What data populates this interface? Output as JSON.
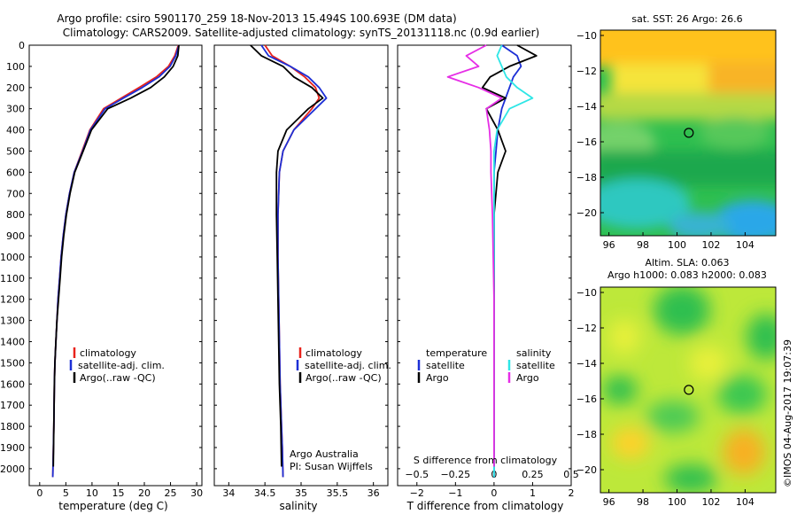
{
  "header": {
    "line1": "Argo profile: csiro 5901170_259 18-Nov-2013 15.494S 100.693E (DM data)",
    "line2": "Climatology: CARS2009. Satellite-adjusted climatology: synTS_20131118.nc (0.9d earlier)"
  },
  "footer": {
    "credit": "©IMOS 04-Aug-2017 19:07:39"
  },
  "colors": {
    "climatology": "#e8231c",
    "satellite": "#1c2fd6",
    "argo": "#000000",
    "s_satellite": "#2ee6e6",
    "s_argo": "#e62ee6",
    "map_marker": "#000000"
  },
  "chart_data": [
    {
      "type": "line",
      "panel": "temperature",
      "xlabel": "temperature (deg C)",
      "ylabel": "",
      "xlim": [
        -2,
        31
      ],
      "ylim": [
        2080,
        0
      ],
      "xticks": [
        0,
        5,
        10,
        15,
        20,
        25,
        30
      ],
      "yticks": [
        0,
        100,
        200,
        300,
        400,
        500,
        600,
        700,
        800,
        900,
        1000,
        1100,
        1200,
        1300,
        1400,
        1500,
        1600,
        1700,
        1800,
        1900,
        2000
      ],
      "legend": [
        "climatology",
        "satellite-adj. clim.",
        "Argo(..raw -QC)"
      ],
      "series": [
        {
          "name": "climatology",
          "x": [
            26.5,
            25.8,
            24.6,
            22.3,
            19.0,
            15.6,
            12.2,
            9.6,
            8.1,
            6.6,
            5.7,
            5.0,
            4.5,
            4.1,
            3.8,
            3.5,
            3.3,
            3.1,
            2.9,
            2.8,
            2.7,
            2.5
          ],
          "y": [
            0,
            50,
            100,
            150,
            200,
            250,
            300,
            400,
            500,
            600,
            700,
            800,
            900,
            1000,
            1100,
            1200,
            1300,
            1400,
            1500,
            1600,
            1800,
            2040
          ]
        },
        {
          "name": "satellite-adj. clim.",
          "x": [
            26.6,
            26.0,
            24.9,
            22.8,
            19.6,
            16.0,
            12.5,
            9.7,
            8.2,
            6.6,
            5.7,
            5.0,
            4.5,
            4.1,
            3.8,
            3.5,
            3.3,
            3.1,
            2.9,
            2.8,
            2.7,
            2.5
          ],
          "y": [
            0,
            50,
            100,
            150,
            200,
            250,
            300,
            400,
            500,
            600,
            700,
            800,
            900,
            1000,
            1100,
            1200,
            1300,
            1400,
            1500,
            1600,
            1800,
            2040
          ]
        },
        {
          "name": "Argo(..raw -QC)",
          "x": [
            26.6,
            26.4,
            25.5,
            23.8,
            21.2,
            17.4,
            13.0,
            9.9,
            8.3,
            6.7,
            5.8,
            5.1,
            4.6,
            4.2,
            3.9,
            3.6,
            3.3,
            3.1,
            2.9,
            2.8,
            2.7,
            2.6
          ],
          "y": [
            0,
            50,
            100,
            150,
            200,
            250,
            300,
            400,
            500,
            600,
            700,
            800,
            900,
            1000,
            1100,
            1200,
            1300,
            1400,
            1500,
            1600,
            1800,
            1990
          ]
        }
      ]
    },
    {
      "type": "line",
      "panel": "salinity",
      "xlabel": "salinity",
      "xlim": [
        33.8,
        36.2
      ],
      "ylim": [
        2080,
        0
      ],
      "xticks": [
        34,
        34.5,
        35,
        35.5,
        36
      ],
      "legend": [
        "climatology",
        "satellite-adj. clim.",
        "Argo(..raw -QC)"
      ],
      "annotation": [
        "Argo Australia",
        "PI: Susan Wijffels"
      ],
      "series": [
        {
          "name": "climatology",
          "x": [
            34.5,
            34.6,
            34.85,
            35.05,
            35.2,
            35.25,
            35.15,
            34.9,
            34.75,
            34.7,
            34.68,
            34.68,
            34.69,
            34.7,
            34.71,
            34.72,
            34.73,
            34.74,
            34.75
          ],
          "y": [
            0,
            50,
            100,
            150,
            200,
            250,
            300,
            400,
            500,
            600,
            800,
            1000,
            1200,
            1400,
            1600,
            1700,
            1800,
            1900,
            2040
          ]
        },
        {
          "name": "satellite-adj. clim.",
          "x": [
            34.45,
            34.55,
            34.85,
            35.1,
            35.25,
            35.35,
            35.2,
            34.9,
            34.75,
            34.7,
            34.68,
            34.68,
            34.69,
            34.7,
            34.71,
            34.72,
            34.73,
            34.74,
            34.75
          ],
          "y": [
            0,
            50,
            100,
            150,
            200,
            250,
            300,
            400,
            500,
            600,
            800,
            1000,
            1200,
            1400,
            1600,
            1700,
            1800,
            1900,
            2040
          ]
        },
        {
          "name": "Argo(..raw -QC)",
          "x": [
            34.3,
            34.45,
            34.75,
            34.9,
            35.15,
            35.3,
            35.1,
            34.8,
            34.68,
            34.66,
            34.66,
            34.67,
            34.68,
            34.69,
            34.7,
            34.71,
            34.72,
            34.73
          ],
          "y": [
            0,
            50,
            100,
            150,
            200,
            250,
            300,
            400,
            500,
            600,
            800,
            1000,
            1200,
            1400,
            1600,
            1700,
            1800,
            1990
          ]
        }
      ]
    },
    {
      "type": "line",
      "panel": "difference",
      "xlabel": "T difference from climatology",
      "xlabel_top": "S difference from climatology",
      "xlim": [
        -2.5,
        2
      ],
      "ylim": [
        2080,
        0
      ],
      "xticks": [
        -2,
        -1,
        0,
        1,
        2
      ],
      "xticks_s": [
        -0.5,
        -0.25,
        0,
        0.25,
        0.5
      ],
      "legend_t_title": "temperature",
      "legend_s_title": "salinity",
      "legend": [
        "satellite",
        "Argo",
        "satellite",
        "Argo"
      ],
      "series": [
        {
          "name": "satellite",
          "x": [
            0.2,
            0.6,
            0.7,
            0.5,
            0.4,
            0.3,
            0.2,
            0.1,
            0.05,
            0.0,
            0.0,
            0.0,
            0.0,
            0.0
          ],
          "y": [
            0,
            50,
            100,
            150,
            200,
            250,
            300,
            400,
            500,
            600,
            800,
            1200,
            1600,
            2040
          ]
        },
        {
          "name": "Argo",
          "x": [
            0.6,
            1.1,
            0.4,
            -0.1,
            -0.3,
            0.3,
            -0.2,
            0.1,
            0.3,
            0.1,
            0.0,
            0.0,
            0.0,
            0.0
          ],
          "y": [
            0,
            50,
            100,
            150,
            200,
            250,
            300,
            400,
            500,
            600,
            800,
            1200,
            1600,
            1990
          ]
        },
        {
          "name": "satellite",
          "x": [
            0.05,
            0.02,
            0.05,
            0.08,
            0.15,
            0.25,
            0.1,
            0.02,
            0.0,
            0.0,
            0.0,
            0.0,
            0.0,
            0.0
          ],
          "y": [
            0,
            50,
            100,
            150,
            200,
            250,
            300,
            400,
            500,
            600,
            800,
            1200,
            1600,
            2040
          ]
        },
        {
          "name": "Argo",
          "x": [
            -0.05,
            -0.18,
            -0.1,
            -0.3,
            -0.1,
            0.05,
            -0.05,
            -0.03,
            -0.02,
            -0.02,
            -0.01,
            0.0,
            0.0,
            0.0
          ],
          "y": [
            0,
            50,
            100,
            150,
            200,
            250,
            300,
            400,
            500,
            600,
            800,
            1200,
            1600,
            1990
          ]
        }
      ]
    },
    {
      "type": "heatmap",
      "panel": "sst_map",
      "title": "sat. SST: 26 Argo: 26.6",
      "xlim": [
        95.5,
        105.8
      ],
      "ylim": [
        -21.3,
        -9.7
      ],
      "xticks": [
        96,
        98,
        100,
        102,
        104
      ],
      "yticks": [
        -10,
        -12,
        -14,
        -16,
        -18,
        -20
      ],
      "marker": {
        "lon": 100.693,
        "lat": -15.494
      }
    },
    {
      "type": "heatmap",
      "panel": "sla_map",
      "title_line1": "Altim. SLA: 0.063",
      "title_line2": "Argo h1000: 0.083 h2000: 0.083",
      "xlim": [
        95.5,
        105.8
      ],
      "ylim": [
        -21.3,
        -9.7
      ],
      "xticks": [
        96,
        98,
        100,
        102,
        104
      ],
      "yticks": [
        -10,
        -12,
        -14,
        -16,
        -18,
        -20
      ],
      "marker": {
        "lon": 100.693,
        "lat": -15.494
      }
    }
  ]
}
